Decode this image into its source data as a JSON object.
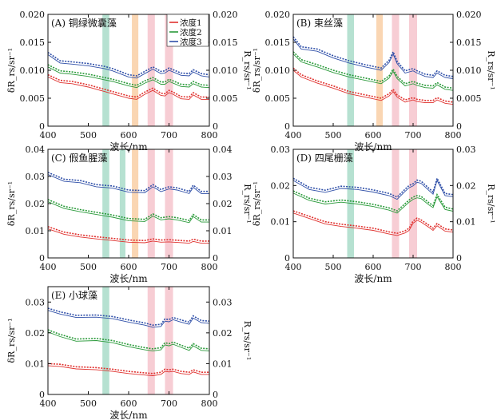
{
  "figure": {
    "x_axis_label": "波长/nm",
    "left_axis_label": "δR_rs/sr⁻¹",
    "right_axis_label": "R_rs/sr⁻¹",
    "colors": {
      "浓度1": "#e0322f",
      "浓度2": "#2a9a3a",
      "浓度3": "#2f4fa8",
      "band_green": "#a9dcc9",
      "band_orange": "#f9cfa6",
      "band_pink": "#f6c4cc"
    }
  },
  "chart_data": [
    {
      "type": "line",
      "panel_label": "(A) 铜绿微囊藻",
      "xlim": [
        400,
        800
      ],
      "ylim": [
        0,
        0.02
      ],
      "x_ticks": [
        400,
        500,
        600,
        700,
        800
      ],
      "y_ticks": [
        "0",
        "0.005",
        "0.010",
        "0.015",
        "0.020"
      ],
      "right_y_ticks": [
        "0",
        "0.005",
        "0.010",
        "0.015",
        "0.020"
      ],
      "legend": [
        "浓度1",
        "浓度2",
        "浓度3"
      ],
      "legend_position": "top-right",
      "bands": [
        [
          535,
          552,
          "green"
        ],
        [
          608,
          624,
          "orange"
        ],
        [
          647,
          665,
          "pink"
        ],
        [
          690,
          710,
          "pink"
        ]
      ],
      "series": [
        {
          "name": "浓度1",
          "color": "#e0322f",
          "x": [
            400,
            430,
            460,
            500,
            540,
            560,
            600,
            620,
            640,
            660,
            680,
            690,
            700,
            710,
            730,
            750,
            760,
            780,
            800
          ],
          "y": [
            0.0092,
            0.0082,
            0.008,
            0.0074,
            0.0066,
            0.0062,
            0.0054,
            0.0052,
            0.0061,
            0.0068,
            0.0059,
            0.0058,
            0.0064,
            0.0061,
            0.0053,
            0.0052,
            0.006,
            0.0052,
            0.0052
          ]
        },
        {
          "name": "浓度2",
          "color": "#2a9a3a",
          "x": [
            400,
            430,
            460,
            500,
            540,
            560,
            600,
            620,
            640,
            660,
            680,
            690,
            700,
            710,
            730,
            750,
            760,
            780,
            800
          ],
          "y": [
            0.011,
            0.0099,
            0.0097,
            0.0093,
            0.0087,
            0.0084,
            0.0076,
            0.0073,
            0.0081,
            0.0087,
            0.0079,
            0.0079,
            0.0084,
            0.0081,
            0.0075,
            0.0074,
            0.008,
            0.0074,
            0.0073
          ]
        },
        {
          "name": "浓度3",
          "color": "#2f4fa8",
          "x": [
            400,
            430,
            460,
            500,
            540,
            560,
            600,
            620,
            640,
            660,
            680,
            690,
            700,
            710,
            730,
            750,
            760,
            780,
            800
          ],
          "y": [
            0.0132,
            0.0117,
            0.0115,
            0.0112,
            0.0107,
            0.0103,
            0.0092,
            0.009,
            0.0098,
            0.0106,
            0.0098,
            0.0099,
            0.0104,
            0.0101,
            0.0095,
            0.0094,
            0.0101,
            0.0094,
            0.0092
          ]
        }
      ]
    },
    {
      "type": "line",
      "panel_label": "(B) 束丝藻",
      "xlim": [
        400,
        800
      ],
      "ylim": [
        0,
        0.02
      ],
      "x_ticks": [
        400,
        500,
        600,
        700,
        800
      ],
      "y_ticks": [
        "0",
        "0.005",
        "0.010",
        "0.015",
        "0.020"
      ],
      "right_y_ticks": [
        "0",
        "0.005",
        "0.010",
        "0.015",
        "0.020"
      ],
      "bands": [
        [
          535,
          552,
          "green"
        ],
        [
          608,
          624,
          "orange"
        ],
        [
          647,
          665,
          "pink"
        ],
        [
          690,
          710,
          "pink"
        ]
      ],
      "series": [
        {
          "name": "浓度1",
          "color": "#e0322f",
          "x": [
            400,
            420,
            460,
            500,
            540,
            580,
            620,
            640,
            650,
            660,
            680,
            700,
            710,
            730,
            750,
            760,
            780,
            800
          ],
          "y": [
            0.0104,
            0.0092,
            0.0081,
            0.0072,
            0.0062,
            0.0056,
            0.005,
            0.0058,
            0.0066,
            0.0056,
            0.0047,
            0.0051,
            0.0048,
            0.0046,
            0.0046,
            0.0051,
            0.0045,
            0.0043
          ]
        },
        {
          "name": "浓度2",
          "color": "#2a9a3a",
          "x": [
            400,
            420,
            460,
            500,
            540,
            580,
            620,
            640,
            650,
            660,
            680,
            700,
            710,
            730,
            750,
            760,
            780,
            800
          ],
          "y": [
            0.0133,
            0.0119,
            0.011,
            0.01,
            0.0092,
            0.0086,
            0.008,
            0.009,
            0.0102,
            0.0089,
            0.0076,
            0.008,
            0.0077,
            0.0073,
            0.0072,
            0.0078,
            0.007,
            0.0068
          ]
        },
        {
          "name": "浓度3",
          "color": "#2f4fa8",
          "x": [
            400,
            420,
            460,
            500,
            540,
            580,
            620,
            640,
            650,
            660,
            680,
            700,
            710,
            730,
            750,
            760,
            780,
            800
          ],
          "y": [
            0.016,
            0.0142,
            0.0138,
            0.0126,
            0.0117,
            0.011,
            0.0104,
            0.0118,
            0.0133,
            0.0116,
            0.0099,
            0.0103,
            0.0099,
            0.0093,
            0.0091,
            0.0099,
            0.0091,
            0.0089
          ]
        }
      ]
    },
    {
      "type": "line",
      "panel_label": "(C) 假鱼腥藻",
      "xlim": [
        400,
        800
      ],
      "ylim": [
        0,
        0.04
      ],
      "x_ticks": [
        400,
        500,
        600,
        700,
        800
      ],
      "y_ticks": [
        "0",
        "0.01",
        "0.02",
        "0.03",
        "0.04"
      ],
      "right_y_ticks": [
        "0",
        "0.01",
        "0.02",
        "0.03",
        "0.04"
      ],
      "bands": [
        [
          535,
          552,
          "green"
        ],
        [
          578,
          592,
          "green"
        ],
        [
          608,
          624,
          "orange"
        ],
        [
          647,
          665,
          "pink"
        ],
        [
          690,
          710,
          "pink"
        ]
      ],
      "series": [
        {
          "name": "浓度1",
          "color": "#e0322f",
          "x": [
            400,
            440,
            480,
            520,
            560,
            600,
            640,
            660,
            680,
            700,
            720,
            750,
            760,
            780,
            800
          ],
          "y": [
            0.0115,
            0.0095,
            0.0085,
            0.0078,
            0.0072,
            0.0066,
            0.0064,
            0.007,
            0.0066,
            0.0067,
            0.0065,
            0.0062,
            0.0069,
            0.0062,
            0.0062
          ]
        },
        {
          "name": "浓度2",
          "color": "#2a9a3a",
          "x": [
            400,
            440,
            480,
            520,
            560,
            600,
            640,
            660,
            680,
            700,
            720,
            750,
            760,
            780,
            800
          ],
          "y": [
            0.0215,
            0.019,
            0.0178,
            0.0168,
            0.0158,
            0.0145,
            0.0142,
            0.0162,
            0.0148,
            0.0152,
            0.0148,
            0.0138,
            0.016,
            0.014,
            0.014
          ]
        },
        {
          "name": "浓度3",
          "color": "#2f4fa8",
          "x": [
            400,
            440,
            480,
            520,
            560,
            600,
            640,
            660,
            680,
            700,
            720,
            750,
            760,
            780,
            800
          ],
          "y": [
            0.0315,
            0.029,
            0.0285,
            0.027,
            0.0265,
            0.025,
            0.0248,
            0.027,
            0.0252,
            0.0262,
            0.0258,
            0.0245,
            0.0268,
            0.0245,
            0.0245
          ]
        }
      ]
    },
    {
      "type": "line",
      "panel_label": "(D) 四尾栅藻",
      "xlim": [
        400,
        800
      ],
      "ylim": [
        0,
        0.03
      ],
      "x_ticks": [
        400,
        500,
        600,
        700,
        800
      ],
      "y_ticks": [
        "0",
        "0.01",
        "0.02",
        "0.03"
      ],
      "right_y_ticks": [
        "0",
        "0.01",
        "0.02",
        "0.03"
      ],
      "bands": [
        [
          535,
          552,
          "green"
        ],
        [
          647,
          665,
          "pink"
        ],
        [
          690,
          710,
          "pink"
        ]
      ],
      "series": [
        {
          "name": "浓度1",
          "color": "#e0322f",
          "x": [
            400,
            440,
            480,
            520,
            560,
            600,
            640,
            660,
            680,
            690,
            700,
            710,
            720,
            740,
            750,
            760,
            780,
            800
          ],
          "y": [
            0.013,
            0.0115,
            0.01,
            0.0093,
            0.0088,
            0.0082,
            0.0072,
            0.0068,
            0.0075,
            0.0082,
            0.0102,
            0.011,
            0.0105,
            0.009,
            0.0082,
            0.0095,
            0.008,
            0.0077
          ]
        },
        {
          "name": "浓度2",
          "color": "#2a9a3a",
          "x": [
            400,
            440,
            480,
            520,
            560,
            600,
            640,
            660,
            680,
            690,
            700,
            710,
            720,
            740,
            750,
            760,
            780,
            800
          ],
          "y": [
            0.0185,
            0.0165,
            0.0155,
            0.016,
            0.0155,
            0.0148,
            0.0138,
            0.013,
            0.015,
            0.016,
            0.0168,
            0.0172,
            0.017,
            0.0152,
            0.0145,
            0.0175,
            0.014,
            0.0135
          ]
        },
        {
          "name": "浓度3",
          "color": "#2f4fa8",
          "x": [
            400,
            440,
            480,
            520,
            560,
            600,
            640,
            660,
            680,
            690,
            700,
            710,
            720,
            740,
            750,
            760,
            780,
            800
          ],
          "y": [
            0.022,
            0.0195,
            0.0187,
            0.0198,
            0.0195,
            0.0188,
            0.0178,
            0.0168,
            0.019,
            0.02,
            0.0205,
            0.0215,
            0.0212,
            0.0192,
            0.0182,
            0.022,
            0.0178,
            0.0175
          ]
        }
      ]
    },
    {
      "type": "line",
      "panel_label": "(E) 小球藻",
      "xlim": [
        400,
        800
      ],
      "ylim": [
        0,
        0.035
      ],
      "x_ticks": [
        400,
        500,
        600,
        700,
        800
      ],
      "y_ticks": [
        "0",
        "0.01",
        "0.02",
        "0.03"
      ],
      "right_y_ticks": [
        "0",
        "0.01",
        "0.02",
        "0.03"
      ],
      "bands": [
        [
          535,
          552,
          "green"
        ],
        [
          647,
          665,
          "pink"
        ],
        [
          690,
          710,
          "pink"
        ]
      ],
      "series": [
        {
          "name": "浓度1",
          "color": "#e0322f",
          "x": [
            400,
            430,
            470,
            520,
            560,
            600,
            640,
            660,
            680,
            690,
            700,
            710,
            730,
            750,
            760,
            780,
            800
          ],
          "y": [
            0.01,
            0.0098,
            0.009,
            0.0087,
            0.0082,
            0.0075,
            0.007,
            0.0068,
            0.0072,
            0.0082,
            0.008,
            0.0082,
            0.0075,
            0.0072,
            0.008,
            0.0072,
            0.0072
          ]
        },
        {
          "name": "浓度2",
          "color": "#2a9a3a",
          "x": [
            400,
            430,
            470,
            520,
            560,
            600,
            640,
            660,
            680,
            690,
            700,
            710,
            730,
            750,
            760,
            780,
            800
          ],
          "y": [
            0.021,
            0.0195,
            0.018,
            0.0182,
            0.0175,
            0.0162,
            0.0152,
            0.0148,
            0.0152,
            0.0168,
            0.0165,
            0.017,
            0.016,
            0.015,
            0.0165,
            0.015,
            0.0148
          ]
        },
        {
          "name": "浓度3",
          "color": "#2f4fa8",
          "x": [
            400,
            430,
            470,
            520,
            560,
            600,
            640,
            660,
            680,
            690,
            700,
            710,
            730,
            750,
            760,
            780,
            800
          ],
          "y": [
            0.028,
            0.0268,
            0.0257,
            0.0258,
            0.0253,
            0.0242,
            0.0232,
            0.0225,
            0.0228,
            0.0245,
            0.0243,
            0.025,
            0.0242,
            0.0235,
            0.0255,
            0.024,
            0.0238
          ]
        }
      ]
    }
  ]
}
